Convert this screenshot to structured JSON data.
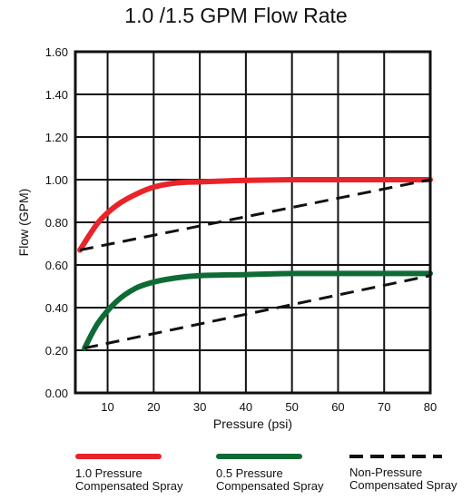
{
  "chart_data": {
    "type": "line",
    "title": "1.0 /1.5 GPM Flow Rate",
    "xlabel": "Pressure (psi)",
    "ylabel": "Flow (GPM)",
    "xlim": [
      3,
      80
    ],
    "ylim": [
      0,
      1.6
    ],
    "x_ticks": [
      "10",
      "20",
      "30",
      "40",
      "50",
      "60",
      "70",
      "80"
    ],
    "y_ticks": [
      "0.00",
      "0.20",
      "0.40",
      "0.60",
      "0.80",
      "1.00",
      "1.20",
      "1.40",
      "1.60"
    ],
    "grid": true,
    "legend_position": "bottom",
    "series": [
      {
        "name": "1.0 Pressure Compensated Spray",
        "color": "#e8242a",
        "style": "solid",
        "x": [
          4,
          8,
          12,
          16,
          20,
          25,
          30,
          40,
          50,
          60,
          70,
          80
        ],
        "y": [
          0.67,
          0.8,
          0.88,
          0.93,
          0.965,
          0.985,
          0.99,
          0.997,
          1.0,
          1.0,
          1.0,
          1.0
        ]
      },
      {
        "name": "0.5 Pressure Compensated Spray",
        "color": "#0e6b35",
        "style": "solid",
        "x": [
          5,
          8,
          12,
          16,
          20,
          25,
          30,
          40,
          50,
          60,
          70,
          80
        ],
        "y": [
          0.21,
          0.33,
          0.43,
          0.49,
          0.52,
          0.54,
          0.55,
          0.555,
          0.56,
          0.56,
          0.56,
          0.56
        ]
      },
      {
        "name": "Non-Pressure Compensated Spray",
        "color": "#111111",
        "style": "dashed",
        "x": [
          4,
          80
        ],
        "y": [
          0.67,
          1.0
        ]
      },
      {
        "name": "Non-Pressure Compensated Spray",
        "color": "#111111",
        "style": "dashed",
        "x": [
          5,
          80
        ],
        "y": [
          0.21,
          0.55
        ]
      }
    ]
  },
  "legend": [
    {
      "label": "1.0 Pressure\nCompensated Spray",
      "color": "#e8242a",
      "style": "solid"
    },
    {
      "label": "0.5 Pressure\nCompensated Spray",
      "color": "#0e6b35",
      "style": "solid"
    },
    {
      "label": "Non-Pressure\nCompensated Spray",
      "color": "#111111",
      "style": "dashed"
    }
  ]
}
